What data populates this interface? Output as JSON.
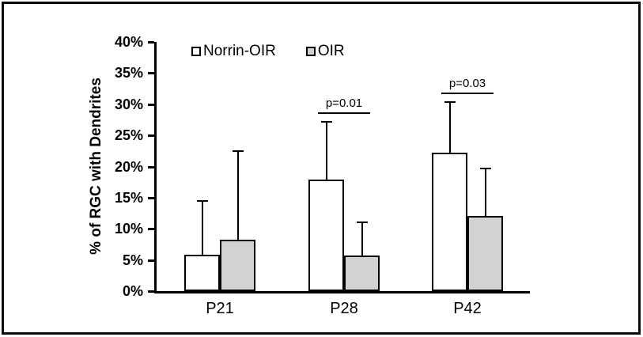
{
  "chart_data": {
    "type": "bar",
    "title": "",
    "categories": [
      "P21",
      "P28",
      "P42"
    ],
    "series": [
      {
        "name": "Norrin-OIR",
        "fill": "#FFFFFF",
        "values": [
          5.9,
          17.9,
          22.2
        ],
        "errors_upper": [
          8.4,
          9.1,
          8.0
        ]
      },
      {
        "name": "OIR",
        "fill": "#D2D2D2",
        "values": [
          8.3,
          5.7,
          12.1
        ],
        "errors_upper": [
          14.0,
          5.2,
          7.4
        ]
      }
    ],
    "annotations": [
      {
        "category": "P28",
        "label": "p=0.01"
      },
      {
        "category": "P42",
        "label": "p=0.03"
      }
    ],
    "xlabel": "",
    "ylabel": "% of RGC with Dendrites",
    "ylim": [
      0,
      40
    ],
    "ytick_step": 5,
    "yticks": [
      "0%",
      "5%",
      "10%",
      "15%",
      "20%",
      "25%",
      "30%",
      "35%",
      "40%"
    ],
    "grid": false,
    "legend_position": "top-left-inside",
    "colors": {
      "bar_outline": "#000000",
      "norrin_oir_fill": "#FFFFFF",
      "oir_fill": "#D2D2D2",
      "axis": "#000000",
      "frame_border": "#0A0A0A"
    }
  }
}
